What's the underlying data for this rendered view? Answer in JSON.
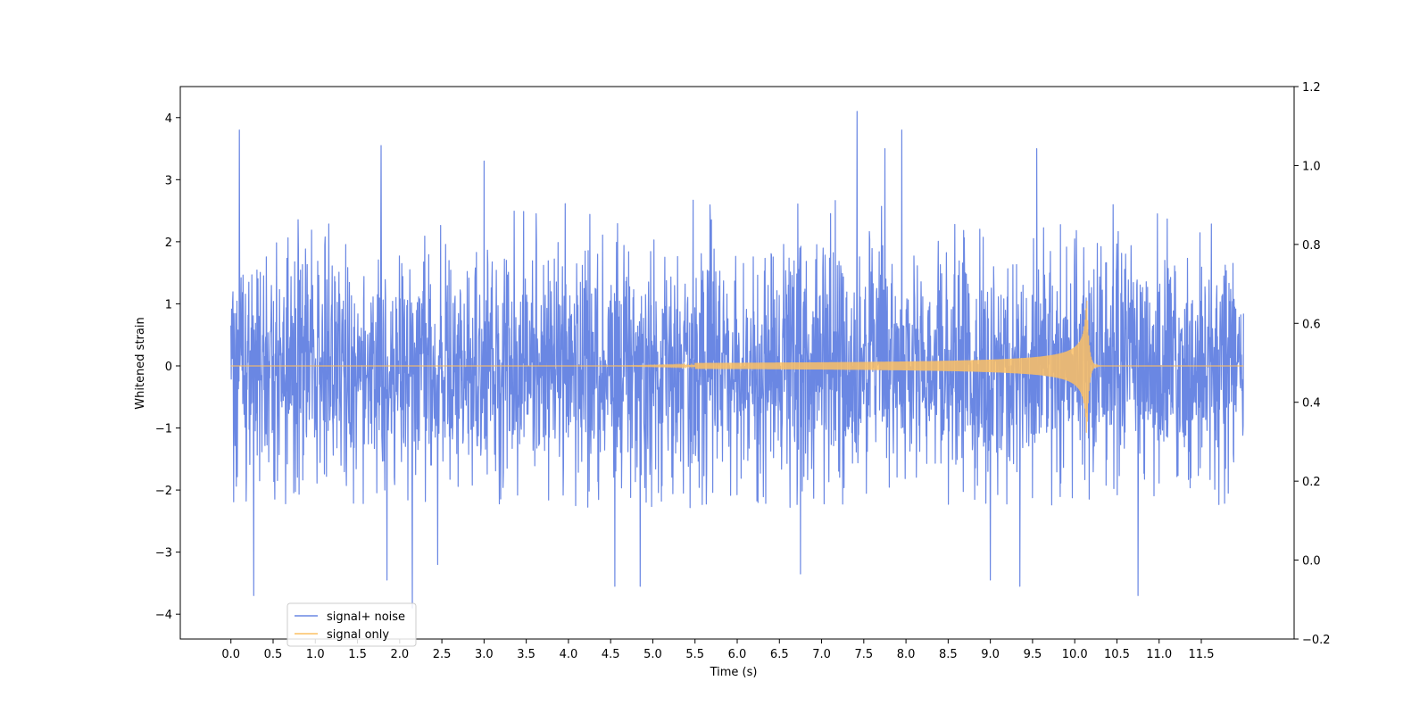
{
  "chart_data": {
    "type": "line",
    "title": "",
    "xlabel": "Time (s)",
    "ylabel": "Whitened strain",
    "xlim": [
      -0.6,
      12.6
    ],
    "ylim": [
      -4.4,
      4.5
    ],
    "y2lim": [
      -0.2,
      1.2
    ],
    "x_ticks": [
      0.0,
      0.5,
      1.0,
      1.5,
      2.0,
      2.5,
      3.0,
      3.5,
      4.0,
      4.5,
      5.0,
      5.5,
      6.0,
      6.5,
      7.0,
      7.5,
      8.0,
      8.5,
      9.0,
      9.5,
      10.0,
      10.5,
      11.0,
      11.5
    ],
    "x_tick_labels": [
      "0.0",
      "0.5",
      "1.0",
      "1.5",
      "2.0",
      "2.5",
      "3.0",
      "3.5",
      "4.0",
      "4.5",
      "5.0",
      "5.5",
      "6.0",
      "6.5",
      "7.0",
      "7.5",
      "8.0",
      "8.5",
      "9.0",
      "9.5",
      "10.0",
      "10.5",
      "11.0",
      "11.5"
    ],
    "y_ticks": [
      -4,
      -3,
      -2,
      -1,
      0,
      1,
      2,
      3,
      4
    ],
    "y_tick_labels": [
      "−4",
      "−3",
      "−2",
      "−1",
      "0",
      "1",
      "2",
      "3",
      "4"
    ],
    "y2_ticks": [
      -0.2,
      0.0,
      0.2,
      0.4,
      0.6,
      0.8,
      1.0,
      1.2
    ],
    "y2_tick_labels": [
      "−0.2",
      "0.0",
      "0.2",
      "0.4",
      "0.6",
      "0.8",
      "1.0",
      "1.2"
    ],
    "grid": false,
    "legend_position": "lower-left",
    "series": [
      {
        "name": "signal+ noise",
        "color": "#6a87e3",
        "description": "Gaussian-like noise between 0 and 12 s, amplitude mostly within ±2.5",
        "x_range": [
          0.0,
          12.0
        ],
        "envelope": {
          "typical_min": -2.3,
          "typical_max": 2.7
        },
        "peaks": [
          {
            "x": 0.1,
            "y": 3.8
          },
          {
            "x": 0.27,
            "y": -3.7
          },
          {
            "x": 1.78,
            "y": 3.55
          },
          {
            "x": 1.85,
            "y": -3.45
          },
          {
            "x": 2.15,
            "y": -3.9
          },
          {
            "x": 2.45,
            "y": -3.2
          },
          {
            "x": 3.0,
            "y": 3.3
          },
          {
            "x": 4.55,
            "y": -3.55
          },
          {
            "x": 4.85,
            "y": -3.55
          },
          {
            "x": 6.75,
            "y": -3.35
          },
          {
            "x": 7.42,
            "y": 4.1
          },
          {
            "x": 7.95,
            "y": 3.8
          },
          {
            "x": 7.75,
            "y": 3.5
          },
          {
            "x": 9.35,
            "y": -3.55
          },
          {
            "x": 9.0,
            "y": -3.45
          },
          {
            "x": 10.75,
            "y": -3.7
          },
          {
            "x": 9.55,
            "y": 3.5
          }
        ]
      },
      {
        "name": "signal only",
        "color": "#fcc064",
        "description": "Inspiral chirp: amplitude grows from ~0 near 6 s to a peak near 10.14 s, then rings down",
        "x_range": [
          0.0,
          12.0
        ],
        "peak_time": 10.14,
        "peak_max": 1.05,
        "peak_min": -1.55
      }
    ],
    "legend_labels": [
      "signal+ noise",
      "signal only"
    ]
  }
}
